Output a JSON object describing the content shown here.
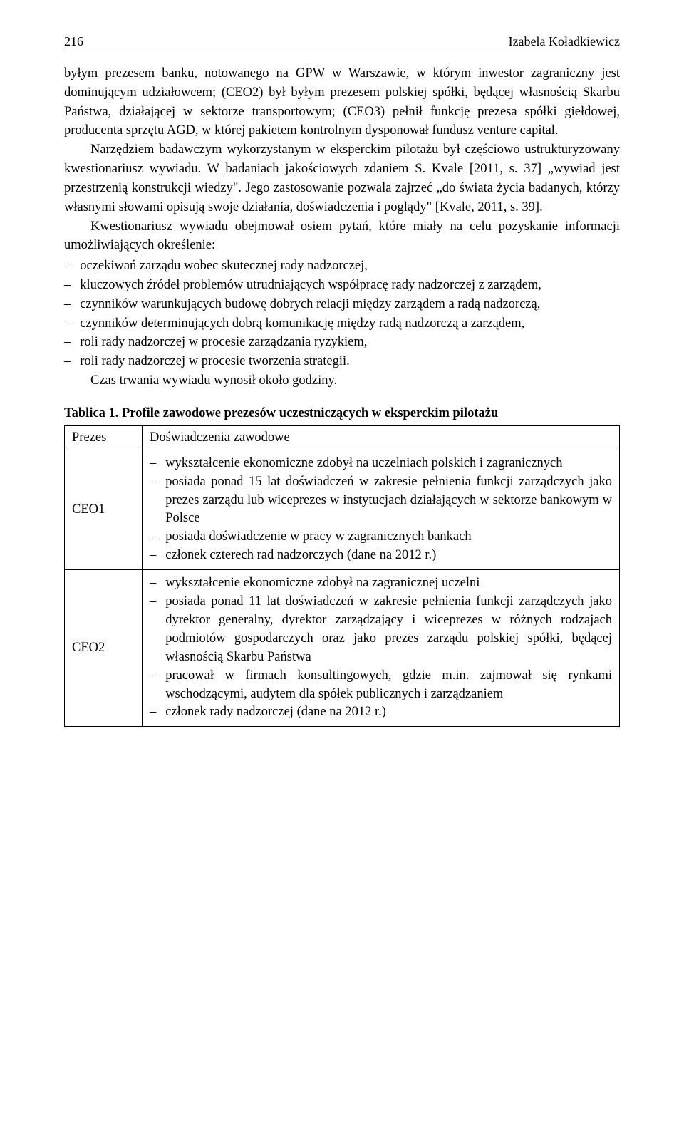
{
  "header": {
    "page_number": "216",
    "author": "Izabela Koładkiewicz"
  },
  "para1": "byłym prezesem banku, notowanego na GPW w Warszawie, w którym inwestor zagraniczny jest dominującym udziałowcem; (CEO2) był byłym prezesem polskiej spółki, będącej własnością Skarbu Państwa, działającej w sektorze transportowym; (CEO3) pełnił funkcję prezesa spółki giełdowej, producenta sprzętu AGD, w której pakietem kontrolnym dysponował fundusz venture capital.",
  "para2": "Narzędziem badawczym wykorzystanym w eksperckim pilotażu był częściowo ustrukturyzowany kwestionariusz wywiadu. W badaniach jakościowych zdaniem S. Kvale [2011, s. 37] „wywiad jest przestrzenią konstrukcji wiedzy\". Jego zastosowanie pozwala zajrzeć „do świata życia badanych, którzy własnymi słowami opisują swoje działania, doświadczenia i poglądy\" [Kvale, 2011, s. 39].",
  "para3": "Kwestionariusz wywiadu obejmował osiem pytań, które miały na celu pozyskanie informacji umożliwiających określenie:",
  "list": [
    "oczekiwań zarządu wobec skutecznej rady nadzorczej,",
    "kluczowych źródeł problemów utrudniających współpracę rady nadzorczej z zarządem,",
    "czynników warunkujących budowę dobrych relacji między zarządem a radą nadzorczą,",
    "czynników determinujących dobrą komunikację między radą nadzorczą a zarządem,",
    "roli rady nadzorczej w procesie zarządzania ryzykiem,",
    "roli rady nadzorczej w procesie tworzenia strategii."
  ],
  "para4": "Czas trwania wywiadu wynosił około godziny.",
  "table": {
    "title": "Tablica 1. Profile zawodowe prezesów uczestniczących w eksperckim pilotażu",
    "head_col1": "Prezes",
    "head_col2": "Doświadczenia zawodowe",
    "rows": [
      {
        "label": "CEO1",
        "items": [
          "wykształcenie ekonomiczne zdobył na uczelniach polskich i zagranicznych",
          "posiada ponad 15 lat doświadczeń w zakresie pełnienia funkcji zarządczych jako prezes zarządu lub wiceprezes w instytucjach działających w sektorze bankowym w Polsce",
          "posiada doświadczenie w pracy w zagranicznych bankach",
          "członek czterech rad nadzorczych (dane na 2012 r.)"
        ]
      },
      {
        "label": "CEO2",
        "items": [
          "wykształcenie ekonomiczne zdobył na zagranicznej uczelni",
          "posiada ponad 11 lat doświadczeń w zakresie pełnienia funkcji zarządczych jako dyrektor generalny, dyrektor zarządzający i wiceprezes w różnych rodzajach podmiotów gospodarczych oraz jako prezes zarządu polskiej spółki, będącej własnością Skarbu Państwa",
          "pracował w firmach konsultingowych, gdzie m.in. zajmował się rynkami wschodzącymi, audytem dla spółek publicznych i zarządzaniem",
          "członek rady nadzorczej (dane na 2012 r.)"
        ]
      }
    ]
  }
}
